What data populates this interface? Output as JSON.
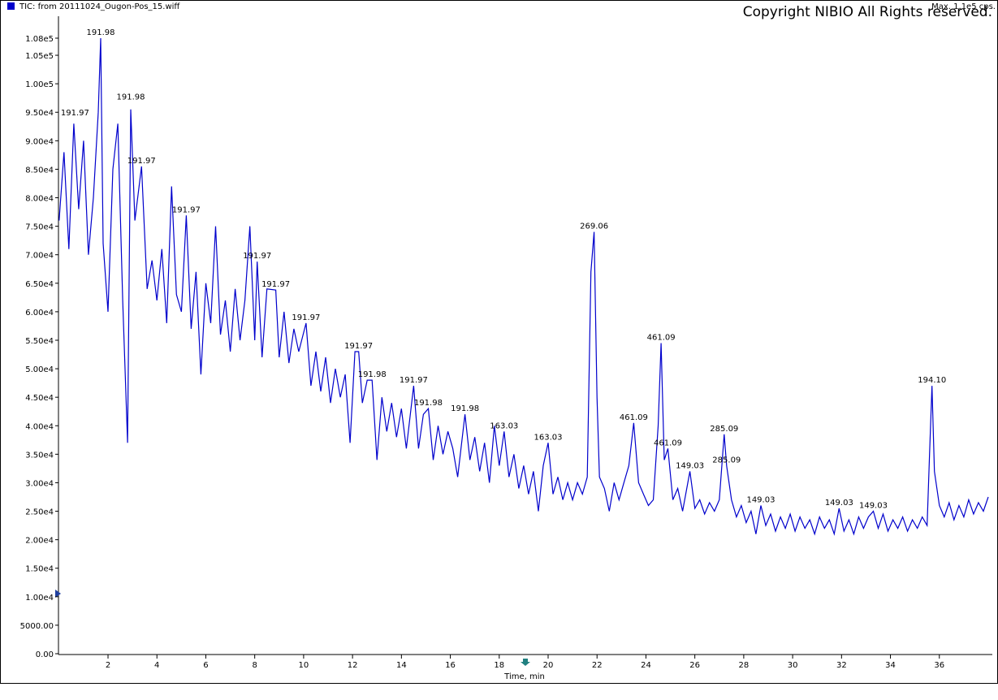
{
  "chart_data": {
    "type": "line",
    "max_label": "Max. 1.1e5 cps.",
    "copyright": "Copyright NIBIO All Rights reserved.",
    "x_label": "Time, min",
    "xlim": [
      0,
      38.1
    ],
    "ylim": [
      0,
      108000
    ],
    "xticks": [
      2,
      4,
      6,
      8,
      10,
      12,
      14,
      16,
      18,
      20,
      22,
      24,
      26,
      28,
      30,
      32,
      34,
      36
    ],
    "yticks": [
      {
        "value": 0,
        "label": "0.00"
      },
      {
        "value": 5000,
        "label": "5000.00"
      },
      {
        "value": 10000,
        "label": "1.00e4"
      },
      {
        "value": 15000,
        "label": "1.50e4"
      },
      {
        "value": 20000,
        "label": "2.00e4"
      },
      {
        "value": 25000,
        "label": "2.50e4"
      },
      {
        "value": 30000,
        "label": "3.00e4"
      },
      {
        "value": 35000,
        "label": "3.50e4"
      },
      {
        "value": 40000,
        "label": "4.00e4"
      },
      {
        "value": 45000,
        "label": "4.50e4"
      },
      {
        "value": 50000,
        "label": "5.00e4"
      },
      {
        "value": 55000,
        "label": "5.50e4"
      },
      {
        "value": 60000,
        "label": "6.00e4"
      },
      {
        "value": 65000,
        "label": "6.50e4"
      },
      {
        "value": 70000,
        "label": "7.00e4"
      },
      {
        "value": 75000,
        "label": "7.50e4"
      },
      {
        "value": 80000,
        "label": "8.00e4"
      },
      {
        "value": 85000,
        "label": "8.50e4"
      },
      {
        "value": 90000,
        "label": "9.00e4"
      },
      {
        "value": 95000,
        "label": "9.50e4"
      },
      {
        "value": 100000,
        "label": "1.00e5"
      },
      {
        "value": 105000,
        "label": "1.05e5"
      },
      {
        "value": 108000,
        "label": "1.08e5"
      }
    ],
    "x": [
      0.0,
      0.2,
      0.4,
      0.6,
      0.8,
      1.0,
      1.2,
      1.4,
      1.6,
      1.7,
      1.8,
      2.0,
      2.2,
      2.4,
      2.6,
      2.8,
      2.93,
      3.1,
      3.37,
      3.6,
      3.8,
      4.0,
      4.2,
      4.4,
      4.6,
      4.8,
      5.0,
      5.2,
      5.4,
      5.6,
      5.8,
      6.0,
      6.2,
      6.4,
      6.6,
      6.8,
      7.0,
      7.2,
      7.4,
      7.6,
      7.8,
      8.0,
      8.1,
      8.3,
      8.5,
      8.86,
      9.0,
      9.2,
      9.4,
      9.6,
      9.8,
      10.1,
      10.3,
      10.5,
      10.7,
      10.9,
      11.1,
      11.3,
      11.5,
      11.7,
      11.9,
      12.1,
      12.25,
      12.4,
      12.6,
      12.8,
      13.0,
      13.2,
      13.4,
      13.6,
      13.8,
      14.0,
      14.2,
      14.5,
      14.7,
      14.9,
      15.1,
      15.3,
      15.5,
      15.7,
      15.9,
      16.1,
      16.3,
      16.6,
      16.8,
      17.0,
      17.2,
      17.4,
      17.6,
      17.8,
      18.0,
      18.2,
      18.4,
      18.6,
      18.8,
      19.0,
      19.2,
      19.4,
      19.6,
      19.8,
      20.0,
      20.2,
      20.4,
      20.6,
      20.8,
      21.0,
      21.2,
      21.4,
      21.6,
      21.75,
      21.88,
      22.0,
      22.1,
      22.3,
      22.5,
      22.7,
      22.9,
      23.1,
      23.3,
      23.5,
      23.7,
      23.9,
      24.1,
      24.3,
      24.5,
      24.62,
      24.75,
      24.9,
      25.1,
      25.3,
      25.5,
      25.8,
      26.0,
      26.2,
      26.4,
      26.6,
      26.8,
      27.0,
      27.2,
      27.3,
      27.5,
      27.7,
      27.9,
      28.1,
      28.3,
      28.5,
      28.7,
      28.9,
      29.1,
      29.3,
      29.5,
      29.7,
      29.9,
      30.1,
      30.3,
      30.5,
      30.7,
      30.9,
      31.1,
      31.3,
      31.5,
      31.7,
      31.9,
      32.1,
      32.3,
      32.5,
      32.7,
      32.9,
      33.1,
      33.3,
      33.5,
      33.7,
      33.9,
      34.1,
      34.3,
      34.5,
      34.7,
      34.9,
      35.1,
      35.3,
      35.5,
      35.6,
      35.7,
      35.8,
      36.0,
      36.2,
      36.4,
      36.6,
      36.8,
      37.0,
      37.2,
      37.4,
      37.6,
      37.8,
      38.0
    ],
    "series": [
      {
        "name": "TIC: from 20111024_Ougon-Pos_15.wiff",
        "color": "#0000cc",
        "values": [
          76000,
          88000,
          71000,
          93000,
          78000,
          90000,
          70000,
          80000,
          95000,
          108000,
          72000,
          60000,
          85000,
          93000,
          62000,
          37000,
          95500,
          76000,
          85500,
          64000,
          69000,
          62000,
          71000,
          58000,
          82000,
          63000,
          60000,
          76900,
          57000,
          67000,
          49000,
          65000,
          58000,
          75000,
          56000,
          62000,
          53000,
          64000,
          55000,
          62000,
          75000,
          55000,
          68800,
          52000,
          64000,
          63800,
          52000,
          60000,
          51000,
          57000,
          53000,
          58000,
          47000,
          53000,
          46000,
          52000,
          44000,
          50000,
          45000,
          49000,
          37000,
          53000,
          53000,
          44000,
          48000,
          48000,
          34000,
          45000,
          39000,
          44000,
          38000,
          43000,
          36000,
          47000,
          36000,
          42000,
          43000,
          34000,
          40000,
          35000,
          39000,
          36000,
          31000,
          42000,
          34000,
          38000,
          32000,
          37000,
          30000,
          40000,
          33000,
          39000,
          31000,
          35000,
          29000,
          33000,
          28000,
          32000,
          25000,
          33000,
          37000,
          28000,
          31000,
          27000,
          30000,
          27000,
          30000,
          28000,
          31000,
          67000,
          74000,
          45000,
          31000,
          29000,
          25000,
          30000,
          27000,
          30000,
          33000,
          40500,
          30000,
          28000,
          26000,
          27000,
          40000,
          54500,
          34000,
          36000,
          27000,
          29000,
          25000,
          32000,
          25500,
          27000,
          24500,
          26500,
          25000,
          27000,
          38500,
          33000,
          27000,
          24000,
          26000,
          23000,
          25000,
          21000,
          26000,
          22500,
          24500,
          21500,
          24000,
          22000,
          24500,
          21500,
          24000,
          22000,
          23500,
          21000,
          24000,
          22000,
          23500,
          21000,
          25500,
          21500,
          23500,
          21000,
          24000,
          22000,
          24000,
          25000,
          22000,
          24500,
          21500,
          23500,
          22000,
          24000,
          21500,
          23500,
          22000,
          24000,
          22500,
          35000,
          47000,
          32000,
          26000,
          24000,
          26500,
          23500,
          26000,
          24000,
          27000,
          24500,
          26500,
          25000,
          27500
        ]
      }
    ],
    "annotations": [
      {
        "x": 1.7,
        "y": 108000,
        "label": "191.98"
      },
      {
        "x": 0.65,
        "y": 93900,
        "label": "191.97"
      },
      {
        "x": 2.93,
        "y": 96700,
        "label": "191.98"
      },
      {
        "x": 3.37,
        "y": 85500,
        "label": "191.97"
      },
      {
        "x": 5.2,
        "y": 76900,
        "label": "191.97"
      },
      {
        "x": 8.1,
        "y": 68800,
        "label": "191.97"
      },
      {
        "x": 8.86,
        "y": 63800,
        "label": "191.97"
      },
      {
        "x": 10.1,
        "y": 58000,
        "label": "191.97"
      },
      {
        "x": 12.25,
        "y": 53000,
        "label": "191.97"
      },
      {
        "x": 12.8,
        "y": 48000,
        "label": "191.98"
      },
      {
        "x": 14.5,
        "y": 47000,
        "label": "191.97"
      },
      {
        "x": 15.1,
        "y": 43000,
        "label": "191.98"
      },
      {
        "x": 16.6,
        "y": 42000,
        "label": "191.98"
      },
      {
        "x": 18.2,
        "y": 39000,
        "label": "163.03"
      },
      {
        "x": 20.0,
        "y": 37000,
        "label": "163.03"
      },
      {
        "x": 21.88,
        "y": 74000,
        "label": "269.06"
      },
      {
        "x": 23.5,
        "y": 40500,
        "label": "461.09"
      },
      {
        "x": 24.62,
        "y": 54500,
        "label": "461.09"
      },
      {
        "x": 24.9,
        "y": 36000,
        "label": "461.09"
      },
      {
        "x": 25.8,
        "y": 32000,
        "label": "149.03"
      },
      {
        "x": 27.2,
        "y": 38500,
        "label": "285.09"
      },
      {
        "x": 27.3,
        "y": 33000,
        "label": "285.09"
      },
      {
        "x": 28.7,
        "y": 26000,
        "label": "149.03"
      },
      {
        "x": 31.9,
        "y": 25500,
        "label": "149.03"
      },
      {
        "x": 33.3,
        "y": 25000,
        "label": "149.03"
      },
      {
        "x": 35.7,
        "y": 47000,
        "label": "194.10"
      }
    ]
  }
}
